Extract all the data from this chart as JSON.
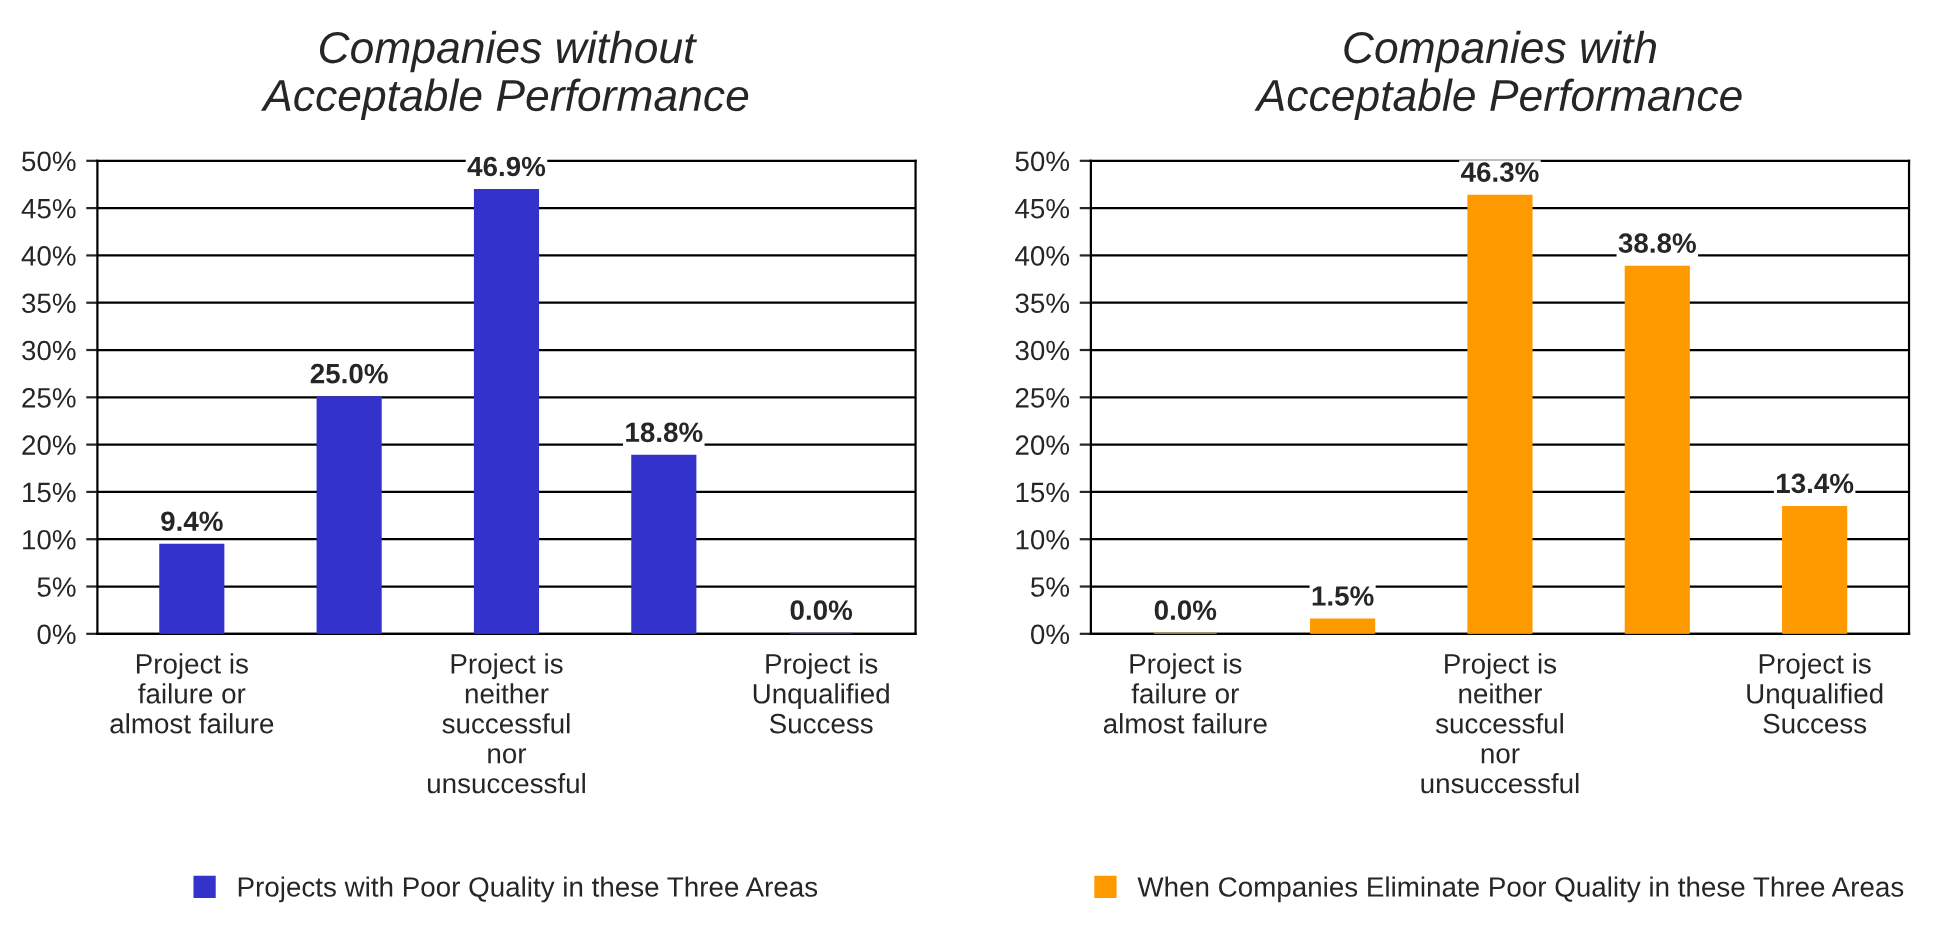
{
  "chart_data": [
    {
      "type": "bar",
      "title": "Companies without\nAcceptable Performance",
      "categories": [
        "Project is\nfailure or\nalmost failure",
        null,
        "Project is\nneither\nsuccessful\nnor\nunsuccessful",
        null,
        "Project is\nUnqualified\nSuccess"
      ],
      "series": [
        {
          "name": "Projects with Poor Quality in these Three Areas",
          "color": "#3333cc",
          "values": [
            9.4,
            25.0,
            46.9,
            18.8,
            0.0
          ],
          "value_labels": [
            "9.4%",
            "25.0%",
            "46.9%",
            "18.8%",
            "0.0%"
          ]
        }
      ],
      "ylim": [
        0,
        50
      ],
      "yticks": [
        {
          "value": 0,
          "label": "0%"
        },
        {
          "value": 5,
          "label": "5%"
        },
        {
          "value": 10,
          "label": "10%"
        },
        {
          "value": 15,
          "label": "15%"
        },
        {
          "value": 20,
          "label": "20%"
        },
        {
          "value": 25,
          "label": "25%"
        },
        {
          "value": 30,
          "label": "30%"
        },
        {
          "value": 35,
          "label": "35%"
        },
        {
          "value": 40,
          "label": "40%"
        },
        {
          "value": 45,
          "label": "45%"
        },
        {
          "value": 50,
          "label": "50%"
        }
      ],
      "grid": "y",
      "legend": "bottom"
    },
    {
      "type": "bar",
      "title": "Companies with\nAcceptable Performance",
      "categories": [
        "Project is\nfailure or\nalmost failure",
        null,
        "Project is\nneither\nsuccessful\nnor\nunsuccessful",
        null,
        "Project is\nUnqualified\nSuccess"
      ],
      "series": [
        {
          "name": "When Companies Eliminate Poor Quality in these Three Areas",
          "color": "#ff9900",
          "values": [
            0.0,
            1.5,
            46.3,
            38.8,
            13.4
          ],
          "value_labels": [
            "0.0%",
            "1.5%",
            "46.3%",
            "38.8%",
            "13.4%"
          ]
        }
      ],
      "ylim": [
        0,
        50
      ],
      "yticks": [
        {
          "value": 0,
          "label": "0%"
        },
        {
          "value": 5,
          "label": "5%"
        },
        {
          "value": 10,
          "label": "10%"
        },
        {
          "value": 15,
          "label": "15%"
        },
        {
          "value": 20,
          "label": "20%"
        },
        {
          "value": 25,
          "label": "25%"
        },
        {
          "value": 30,
          "label": "30%"
        },
        {
          "value": 35,
          "label": "35%"
        },
        {
          "value": 40,
          "label": "40%"
        },
        {
          "value": 45,
          "label": "45%"
        },
        {
          "value": 50,
          "label": "50%"
        }
      ],
      "grid": "y",
      "legend": "bottom"
    }
  ]
}
